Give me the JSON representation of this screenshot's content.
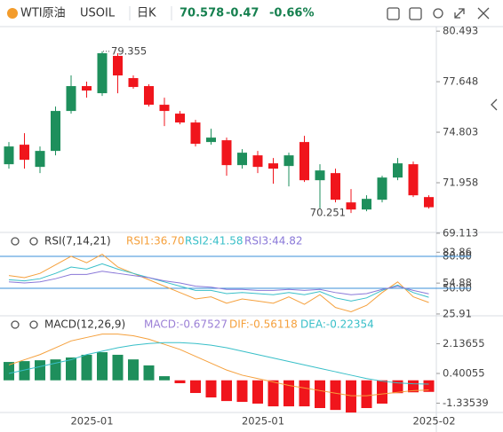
{
  "header": {
    "name": "WTI原油",
    "symbol": "USOIL",
    "period": "日K",
    "price": 70.578,
    "change": -0.47,
    "change_pct": "-0.66%"
  },
  "chart_data": [
    {
      "type": "candlestick",
      "categories": [
        null,
        null,
        null,
        null,
        null,
        "2025-01",
        null,
        null,
        null,
        null,
        null,
        null,
        null,
        null,
        null,
        null,
        "2025-01",
        null,
        null,
        null,
        null,
        null,
        null,
        null,
        null,
        null,
        null,
        "2025-02"
      ],
      "open": [
        73.0,
        74.1,
        72.85,
        73.75,
        76.0,
        77.4,
        77.0,
        79.1,
        77.85,
        77.4,
        76.35,
        75.85,
        75.35,
        74.25,
        74.35,
        72.95,
        73.5,
        73.05,
        72.9,
        74.25,
        72.1,
        72.5,
        70.85,
        70.45,
        71.0,
        72.25,
        73.0,
        71.15
      ],
      "high": [
        74.25,
        74.75,
        74.0,
        76.25,
        78.0,
        77.65,
        79.355,
        79.25,
        78.0,
        77.5,
        76.75,
        76.0,
        75.5,
        75.0,
        74.5,
        73.85,
        73.75,
        73.35,
        73.65,
        74.6,
        73.0,
        72.75,
        71.6,
        71.25,
        72.35,
        73.35,
        73.15,
        71.25
      ],
      "low": [
        72.75,
        72.75,
        72.5,
        73.5,
        75.85,
        76.75,
        76.85,
        77.0,
        77.25,
        76.25,
        75.15,
        75.25,
        74.0,
        74.1,
        72.35,
        72.75,
        72.5,
        71.9,
        71.75,
        72.0,
        70.5,
        70.85,
        70.251,
        70.35,
        70.85,
        72.1,
        71.15,
        70.5
      ],
      "close": [
        74.0,
        73.25,
        73.75,
        76.0,
        77.4,
        77.15,
        79.25,
        78.0,
        77.35,
        76.35,
        76.0,
        75.35,
        74.15,
        74.5,
        72.95,
        73.65,
        72.85,
        72.75,
        73.5,
        72.1,
        72.65,
        71.0,
        70.45,
        71.05,
        72.25,
        73.05,
        71.25,
        70.578
      ],
      "up_color": "#1e8f5c",
      "down_color": "#f0151c",
      "ylim": [
        69.06,
        80.75
      ],
      "yticks": [
        80.493,
        77.648,
        74.803,
        71.958,
        69.113
      ]
    },
    {
      "type": "line",
      "title": "RSI(7,14,21)",
      "series": [
        {
          "name": "RSI1:36.70",
          "color": "#f5a03c",
          "values": [
            62,
            60,
            64,
            72,
            80,
            74,
            82,
            70,
            64,
            58,
            52,
            46,
            40,
            42,
            36,
            40,
            38,
            36,
            42,
            35,
            44,
            32,
            28,
            34,
            46,
            56,
            42,
            36.7
          ]
        },
        {
          "name": "RSI2:41.58",
          "color": "#38bfc8",
          "values": [
            58,
            57,
            59,
            64,
            70,
            68,
            73,
            68,
            64,
            60,
            56,
            52,
            48,
            48,
            45,
            46,
            45,
            44,
            46,
            44,
            47,
            41,
            38,
            41,
            48,
            53,
            46,
            41.58
          ]
        },
        {
          "name": "RSI3:44.82",
          "color": "#8a78d8",
          "values": [
            56,
            55,
            56,
            59,
            63,
            63,
            66,
            64,
            62,
            60,
            57,
            55,
            52,
            51,
            49,
            49,
            48,
            48,
            49,
            48,
            49,
            46,
            44,
            45,
            49,
            52,
            48,
            44.82
          ]
        }
      ],
      "reference_lines": [
        80,
        50
      ],
      "reference_color": "#3a8fd8",
      "ylim": [
        24.2,
        85.8
      ],
      "yticks": [
        {
          "value": 80,
          "label": "80.00"
        },
        83.86,
        54.88,
        {
          "value": 50,
          "label": "50.00"
        },
        25.91
      ]
    },
    {
      "type": "macd",
      "title": "MACD(12,26,9)",
      "series": [
        {
          "name": "MACD:-0.67527",
          "color": "#9b7fd6",
          "up_color": "#1e8f5c",
          "down_color": "#f0151c",
          "values": [
            1.07,
            1.12,
            1.17,
            1.22,
            1.33,
            1.49,
            1.64,
            1.49,
            1.22,
            0.87,
            0.24,
            -0.17,
            -0.74,
            -1.0,
            -1.21,
            -1.26,
            -1.36,
            -1.52,
            -1.52,
            -1.52,
            -1.62,
            -1.73,
            -1.88,
            -1.62,
            -1.36,
            -0.75,
            -0.7,
            -0.67527
          ]
        },
        {
          "name": "DIF:-0.56118",
          "color": "#f5a03c",
          "values": [
            0.9,
            1.2,
            1.5,
            1.9,
            2.3,
            2.5,
            2.7,
            2.7,
            2.6,
            2.4,
            2.1,
            1.8,
            1.4,
            1.0,
            0.6,
            0.3,
            0.1,
            -0.1,
            -0.3,
            -0.45,
            -0.6,
            -0.75,
            -0.9,
            -0.9,
            -0.8,
            -0.7,
            -0.6,
            -0.56118
          ]
        },
        {
          "name": "DEA:-0.22354",
          "color": "#38bfc8",
          "values": [
            0.4,
            0.6,
            0.8,
            1.0,
            1.2,
            1.5,
            1.7,
            1.9,
            2.05,
            2.15,
            2.2,
            2.2,
            2.15,
            2.05,
            1.9,
            1.7,
            1.5,
            1.3,
            1.1,
            0.9,
            0.7,
            0.5,
            0.3,
            0.1,
            -0.05,
            -0.15,
            -0.2,
            -0.22354
          ]
        }
      ],
      "ylim": [
        -1.93,
        2.73
      ],
      "yticks": [
        2.13655,
        0.40055,
        -1.33539
      ]
    }
  ]
}
